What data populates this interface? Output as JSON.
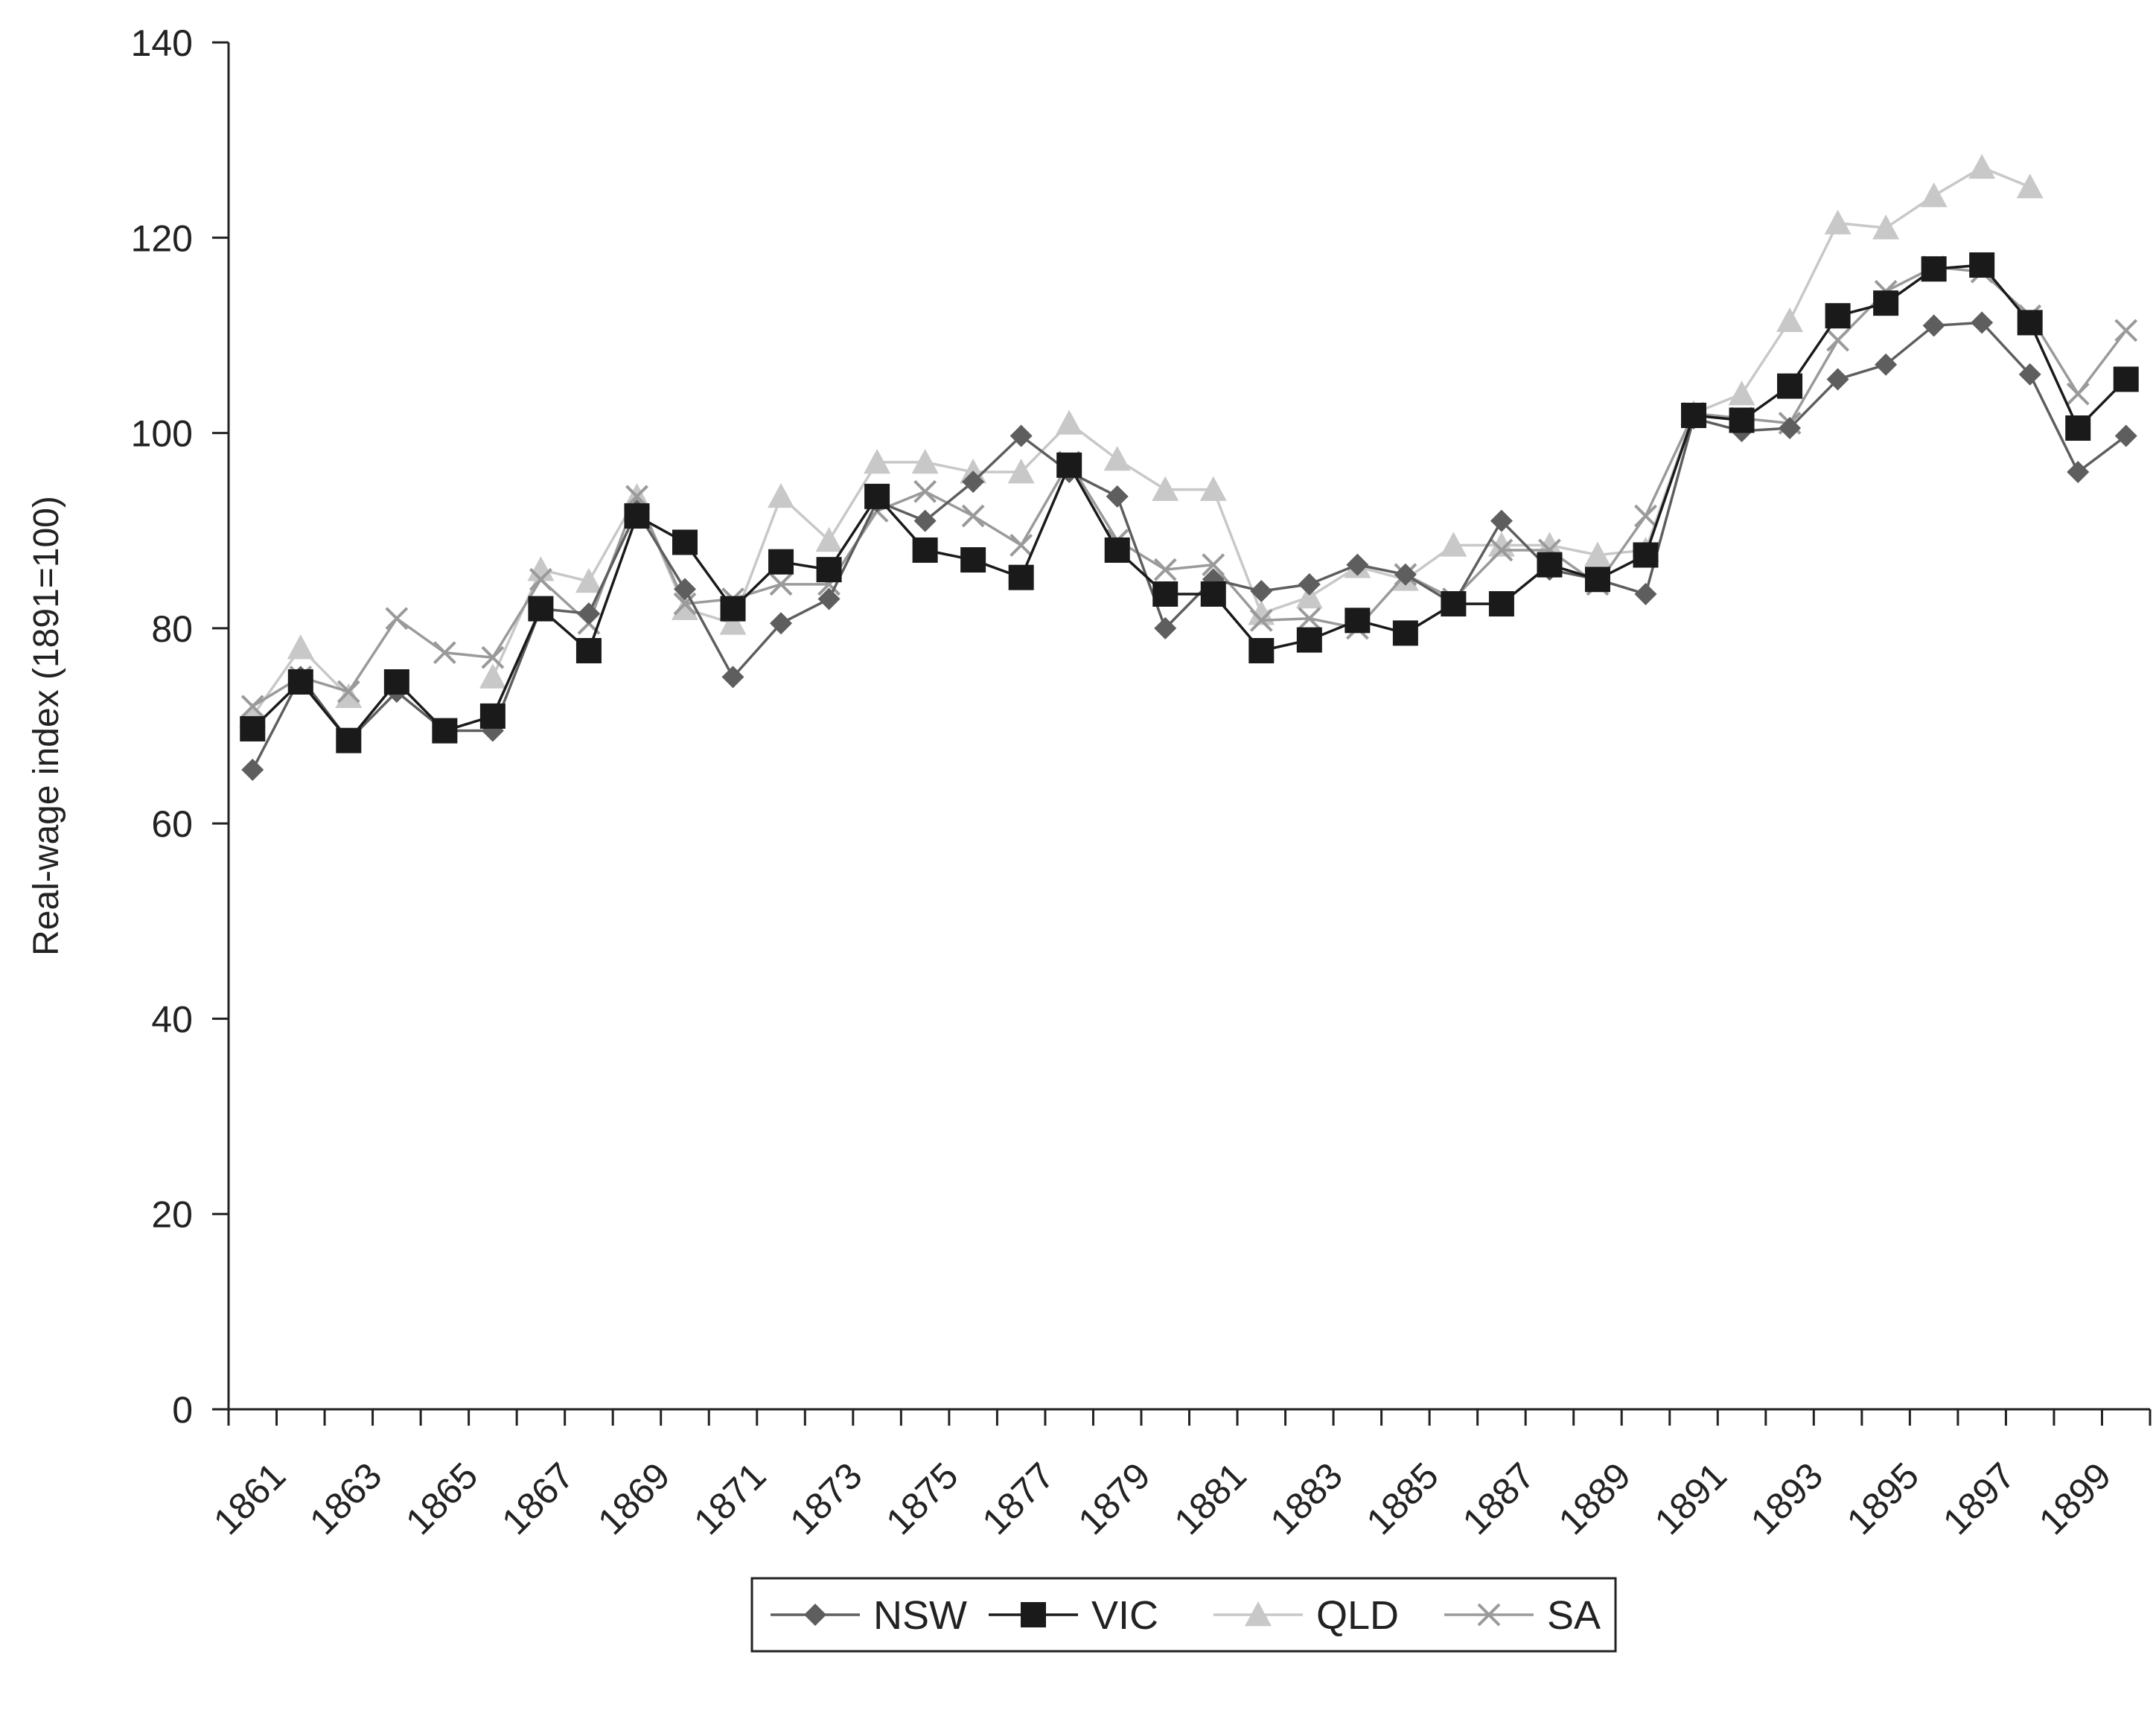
{
  "chart_data": {
    "type": "line",
    "title": "",
    "xlabel": "",
    "ylabel": "Real-wage index (1891=100)",
    "ylim": [
      0,
      140
    ],
    "yticks": [
      0,
      20,
      40,
      60,
      80,
      100,
      120,
      140
    ],
    "xlim": [
      1861,
      1900
    ],
    "xtick_labels": [
      "1861",
      "1863",
      "1865",
      "1867",
      "1869",
      "1871",
      "1873",
      "1875",
      "1877",
      "1879",
      "1881",
      "1883",
      "1885",
      "1887",
      "1889",
      "1891",
      "1893",
      "1895",
      "1897",
      "1899"
    ],
    "grid": false,
    "legend_position": "bottom-center",
    "x": [
      1861,
      1862,
      1863,
      1864,
      1865,
      1866,
      1867,
      1868,
      1869,
      1870,
      1871,
      1872,
      1873,
      1874,
      1875,
      1876,
      1877,
      1878,
      1879,
      1880,
      1881,
      1882,
      1883,
      1884,
      1885,
      1886,
      1887,
      1888,
      1889,
      1890,
      1891,
      1892,
      1893,
      1894,
      1895,
      1896,
      1897,
      1898,
      1899,
      1900
    ],
    "series": [
      {
        "name": "NSW",
        "marker": "diamond",
        "color": "#5e5e5e",
        "values": [
          65.5,
          75,
          68.5,
          73.5,
          69.5,
          69.5,
          82,
          81.5,
          92,
          84,
          75,
          80.5,
          83,
          93,
          91,
          95,
          99.7,
          96,
          93.5,
          80,
          85,
          83.8,
          84.5,
          86.5,
          85.5,
          82.5,
          91,
          86,
          85,
          83.5,
          101.5,
          100.2,
          100.5,
          105.5,
          107,
          111,
          111.3,
          106,
          96,
          99.7
        ]
      },
      {
        "name": "VIC",
        "marker": "square",
        "color": "#1a1a1a",
        "values": [
          69.7,
          74.5,
          68.5,
          74.5,
          69.5,
          71,
          82,
          77.7,
          91.5,
          88.8,
          82,
          86.8,
          86,
          93.5,
          88,
          87,
          85.2,
          96.7,
          88,
          83.5,
          83.5,
          77.7,
          78.8,
          80.8,
          79.5,
          82.5,
          82.5,
          86.5,
          85,
          87.5,
          101.8,
          101.3,
          104.8,
          112,
          113.3,
          116.8,
          117.2,
          111.3,
          100.5,
          105.5
        ]
      },
      {
        "name": "QLD",
        "marker": "triangle",
        "color": "#c8c8c8",
        "values": [
          71,
          78,
          73,
          null,
          null,
          75,
          86,
          84.8,
          93.5,
          82,
          80.5,
          93.5,
          89,
          97,
          97,
          96,
          96,
          101,
          97.3,
          94.2,
          94.2,
          81.5,
          83.2,
          86.3,
          85,
          88.5,
          88.5,
          88.5,
          87.5,
          88,
          102,
          104,
          111.5,
          121.5,
          121,
          124.3,
          127.2,
          125.2,
          null,
          null
        ]
      },
      {
        "name": "SA",
        "marker": "x",
        "color": "#9a9a9a",
        "values": [
          72,
          75,
          73.5,
          81,
          77.5,
          77,
          85,
          80.5,
          93.5,
          82.5,
          83,
          84.5,
          84.5,
          92,
          94,
          91.5,
          88.5,
          97,
          89,
          86,
          86.5,
          80.8,
          81,
          80,
          85.5,
          83,
          88,
          88,
          84.5,
          91.5,
          102,
          101.5,
          101,
          109.5,
          114.5,
          117,
          116.5,
          112,
          104,
          110.5
        ]
      }
    ]
  }
}
